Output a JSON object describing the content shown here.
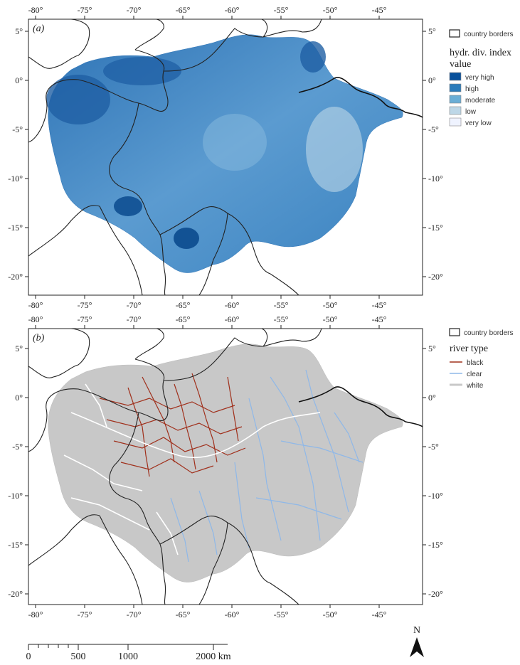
{
  "lon_ticks": [
    "-80°",
    "-75°",
    "-70°",
    "-65°",
    "-60°",
    "-55°",
    "-50°",
    "-45°"
  ],
  "lat_ticks": [
    "5°",
    "0°",
    "-5°",
    "-10°",
    "-15°",
    "-20°"
  ],
  "panel_a": {
    "label": "(a)",
    "legend": {
      "border_label": "country borders",
      "title_line1": "hydr. div. index",
      "title_line2": "value",
      "items": [
        {
          "label": "very high",
          "color": "#08519c"
        },
        {
          "label": "high",
          "color": "#2b7bba"
        },
        {
          "label": "moderate",
          "color": "#6aaed6"
        },
        {
          "label": "low",
          "color": "#bdd7e7"
        },
        {
          "label": "very low",
          "color": "#eff3ff"
        }
      ]
    }
  },
  "panel_b": {
    "label": "(b)",
    "legend": {
      "border_label": "country borders",
      "title": "river type",
      "items": [
        {
          "label": "black",
          "color": "#a0301c"
        },
        {
          "label": "clear",
          "color": "#8fb8e8"
        },
        {
          "label": "white",
          "color": "#c8c8c8"
        }
      ]
    }
  },
  "scale_bar": {
    "labels": [
      "0",
      "500",
      "1000",
      "2000 km"
    ]
  },
  "north_arrow": {
    "label": "N"
  }
}
